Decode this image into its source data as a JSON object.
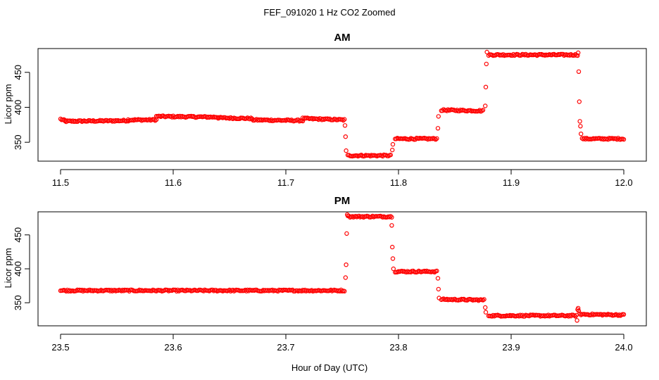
{
  "figure": {
    "title": "FEF_091020  1 Hz CO2 Zoomed",
    "xlabel": "Hour of Day (UTC)"
  },
  "colors": {
    "points": "#ff0000",
    "axes": "#000000",
    "background": "#ffffff"
  },
  "chart_data": [
    {
      "type": "scatter",
      "title": "AM",
      "ylabel": "Licor ppm",
      "xlim": [
        11.48,
        12.02
      ],
      "ylim": [
        323,
        484
      ],
      "xticks": [
        11.5,
        11.6,
        11.7,
        11.8,
        11.9,
        12.0
      ],
      "xtick_labels": [
        "11.5",
        "11.6",
        "11.7",
        "11.8",
        "11.9",
        "12.0"
      ],
      "yticks": [
        350,
        400,
        450
      ],
      "ytick_labels": [
        "350",
        "400",
        "450"
      ],
      "marker": "open-circle",
      "grid": false,
      "series": [
        {
          "plateaus": [
            {
              "x": [
                11.5,
                11.504
              ],
              "y": [
                383,
                381
              ]
            },
            {
              "x": [
                11.504,
                11.56
              ],
              "y": [
                380,
                381
              ]
            },
            {
              "x": [
                11.56,
                11.585
              ],
              "y": [
                382,
                382
              ]
            },
            {
              "x": [
                11.585,
                11.64
              ],
              "y": [
                387,
                386
              ]
            },
            {
              "x": [
                11.64,
                11.67
              ],
              "y": [
                385,
                384
              ]
            },
            {
              "x": [
                11.67,
                11.715
              ],
              "y": [
                382,
                381
              ]
            },
            {
              "x": [
                11.715,
                11.752
              ],
              "y": [
                384,
                382
              ]
            },
            {
              "x": [
                11.755,
                11.793
              ],
              "y": [
                331,
                331
              ]
            },
            {
              "x": [
                11.797,
                11.834
              ],
              "y": [
                355,
                355
              ]
            },
            {
              "x": [
                11.838,
                11.875
              ],
              "y": [
                396,
                395
              ]
            },
            {
              "x": [
                11.88,
                11.959
              ],
              "y": [
                475,
                475
              ]
            },
            {
              "x": [
                11.963,
                12.0
              ],
              "y": [
                355,
                355
              ]
            }
          ],
          "transitions": [
            {
              "x": 11.7525,
              "y": 374
            },
            {
              "x": 11.753,
              "y": 358
            },
            {
              "x": 11.7535,
              "y": 338
            },
            {
              "x": 11.7945,
              "y": 339
            },
            {
              "x": 11.795,
              "y": 347
            },
            {
              "x": 11.835,
              "y": 370
            },
            {
              "x": 11.8355,
              "y": 387
            },
            {
              "x": 11.877,
              "y": 402
            },
            {
              "x": 11.8775,
              "y": 429
            },
            {
              "x": 11.878,
              "y": 462
            },
            {
              "x": 11.8785,
              "y": 479
            },
            {
              "x": 11.9595,
              "y": 478
            },
            {
              "x": 11.96,
              "y": 451
            },
            {
              "x": 11.9605,
              "y": 408
            },
            {
              "x": 11.961,
              "y": 380
            },
            {
              "x": 11.9615,
              "y": 373
            },
            {
              "x": 11.962,
              "y": 362
            }
          ]
        }
      ]
    },
    {
      "type": "scatter",
      "title": "PM",
      "ylabel": "Licor ppm",
      "xlim": [
        23.48,
        24.02
      ],
      "ylim": [
        316,
        484
      ],
      "xticks": [
        23.5,
        23.6,
        23.7,
        23.8,
        23.9,
        24.0
      ],
      "xtick_labels": [
        "23.5",
        "23.6",
        "23.7",
        "23.8",
        "23.9",
        "24.0"
      ],
      "yticks": [
        350,
        400,
        450
      ],
      "ytick_labels": [
        "350",
        "400",
        "450"
      ],
      "marker": "open-circle",
      "grid": false,
      "series": [
        {
          "plateaus": [
            {
              "x": [
                23.5,
                23.752
              ],
              "y": [
                368,
                368
              ]
            },
            {
              "x": [
                23.756,
                23.794
              ],
              "y": [
                477,
                477
              ]
            },
            {
              "x": [
                23.797,
                23.834
              ],
              "y": [
                396,
                396
              ]
            },
            {
              "x": [
                23.838,
                23.876
              ],
              "y": [
                355,
                354
              ]
            },
            {
              "x": [
                23.88,
                23.958
              ],
              "y": [
                331,
                331
              ]
            },
            {
              "x": [
                23.961,
                24.0
              ],
              "y": [
                333,
                332
              ]
            }
          ],
          "transitions": [
            {
              "x": 23.753,
              "y": 387
            },
            {
              "x": 23.7535,
              "y": 406
            },
            {
              "x": 23.754,
              "y": 452
            },
            {
              "x": 23.7545,
              "y": 480
            },
            {
              "x": 23.755,
              "y": 478
            },
            {
              "x": 23.794,
              "y": 464
            },
            {
              "x": 23.7945,
              "y": 432
            },
            {
              "x": 23.795,
              "y": 415
            },
            {
              "x": 23.7955,
              "y": 400
            },
            {
              "x": 23.835,
              "y": 386
            },
            {
              "x": 23.8355,
              "y": 370
            },
            {
              "x": 23.836,
              "y": 357
            },
            {
              "x": 23.877,
              "y": 343
            },
            {
              "x": 23.8775,
              "y": 336
            },
            {
              "x": 23.9585,
              "y": 324
            },
            {
              "x": 23.959,
              "y": 340
            },
            {
              "x": 23.9595,
              "y": 342
            },
            {
              "x": 23.96,
              "y": 338
            }
          ]
        }
      ]
    }
  ]
}
